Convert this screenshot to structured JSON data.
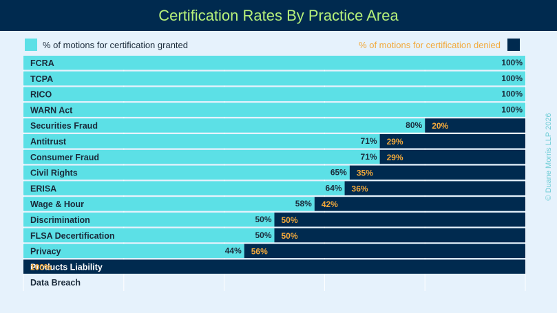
{
  "chart_data": {
    "type": "bar",
    "stacked": true,
    "orientation": "horizontal",
    "title": "Certification Rates By Practice Area",
    "categories": [
      "FCRA",
      "TCPA",
      "RICO",
      "WARN Act",
      "Securities Fraud",
      "Antitrust",
      "Consumer Fraud",
      "Civil Rights",
      "ERISA",
      "Wage & Hour",
      "Discrimination",
      "FLSA Decertification",
      "Privacy",
      "Products Liability",
      "Data Breach"
    ],
    "series": [
      {
        "name": "% of motions for certification granted",
        "values": [
          100,
          100,
          100,
          100,
          80,
          71,
          71,
          65,
          64,
          58,
          50,
          50,
          44,
          0,
          null
        ],
        "labels": [
          "100%",
          "100%",
          "100%",
          "100%",
          "80%",
          "71%",
          "71%",
          "65%",
          "64%",
          "58%",
          "50%",
          "50%",
          "44%",
          "",
          ""
        ]
      },
      {
        "name": "% of motions for certification denied",
        "values": [
          0,
          0,
          0,
          0,
          20,
          29,
          29,
          35,
          36,
          42,
          50,
          50,
          56,
          100,
          null
        ],
        "labels": [
          "",
          "",
          "",
          "",
          "20%",
          "29%",
          "29%",
          "35%",
          "36%",
          "42%",
          "50%",
          "50%",
          "56%",
          "100%",
          ""
        ]
      }
    ],
    "xlim": [
      0,
      100
    ],
    "grid": true,
    "legend": "top"
  },
  "colors": {
    "granted": "#5ce0e6",
    "denied": "#002a4f",
    "denied_label": "#f2a93b",
    "title": "#b6f07a",
    "background": "#e6f2fc"
  },
  "copyright": "© Duane Morris LLP 2026"
}
